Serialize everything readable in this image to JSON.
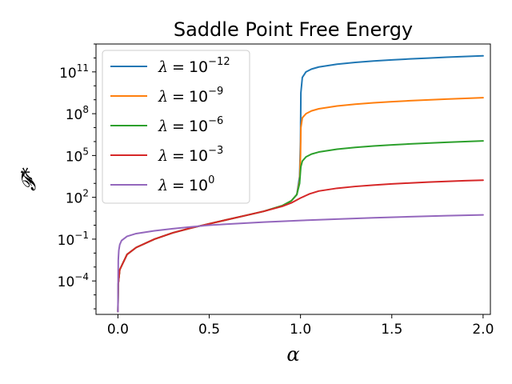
{
  "chart_data": {
    "type": "line",
    "title": "Saddle Point Free Energy",
    "xlabel": "α",
    "ylabel": "𝓕*",
    "xlim": [
      -0.12,
      2.04
    ],
    "ylim_log10": [
      -6.4,
      13.0
    ],
    "yscale": "log",
    "grid": false,
    "legend_placement": "top-left",
    "x_ticks": [
      {
        "value": 0.0,
        "label": "0.0"
      },
      {
        "value": 0.5,
        "label": "0.5"
      },
      {
        "value": 1.0,
        "label": "1.0"
      },
      {
        "value": 1.5,
        "label": "1.5"
      },
      {
        "value": 2.0,
        "label": "2.0"
      }
    ],
    "y_ticks": [
      {
        "exp": -4,
        "base": "10",
        "power": "−4"
      },
      {
        "exp": -1,
        "base": "10",
        "power": "−1"
      },
      {
        "exp": 2,
        "base": "10",
        "power": "2"
      },
      {
        "exp": 5,
        "base": "10",
        "power": "5"
      },
      {
        "exp": 8,
        "base": "10",
        "power": "8"
      },
      {
        "exp": 11,
        "base": "10",
        "power": "11"
      }
    ],
    "series": [
      {
        "name": "λ = 10^−12",
        "legend_symbol": "λ",
        "legend_eq": "=",
        "legend_base": "10",
        "legend_power": "−12",
        "color": "#1f77b4",
        "x": [
          0.0,
          0.002,
          0.01,
          0.05,
          0.1,
          0.2,
          0.3,
          0.4,
          0.5,
          0.6,
          0.7,
          0.8,
          0.9,
          0.95,
          0.98,
          0.995,
          1.0,
          1.002,
          1.01,
          1.03,
          1.06,
          1.1,
          1.2,
          1.3,
          1.4,
          1.5,
          1.6,
          1.7,
          1.8,
          1.9,
          2.0
        ],
        "y_log10": [
          -6.2,
          -4.2,
          -3.2,
          -2.1,
          -1.6,
          -1.0,
          -0.55,
          -0.2,
          0.1,
          0.4,
          0.7,
          1.0,
          1.4,
          1.75,
          2.2,
          3.5,
          6.0,
          9.5,
          10.6,
          11.0,
          11.2,
          11.35,
          11.55,
          11.68,
          11.78,
          11.86,
          11.93,
          11.99,
          12.05,
          12.1,
          12.15
        ]
      },
      {
        "name": "λ = 10^−9",
        "legend_symbol": "λ",
        "legend_eq": "=",
        "legend_base": "10",
        "legend_power": "−9",
        "color": "#ff7f0e",
        "x": [
          0.0,
          0.002,
          0.01,
          0.05,
          0.1,
          0.2,
          0.3,
          0.4,
          0.5,
          0.6,
          0.7,
          0.8,
          0.9,
          0.95,
          0.98,
          0.995,
          1.0,
          1.002,
          1.01,
          1.03,
          1.06,
          1.1,
          1.2,
          1.3,
          1.4,
          1.5,
          1.6,
          1.7,
          1.8,
          1.9,
          2.0
        ],
        "y_log10": [
          -6.2,
          -4.2,
          -3.2,
          -2.1,
          -1.6,
          -1.0,
          -0.55,
          -0.2,
          0.1,
          0.4,
          0.7,
          1.0,
          1.4,
          1.75,
          2.2,
          3.2,
          5.0,
          7.0,
          7.7,
          8.0,
          8.2,
          8.35,
          8.55,
          8.68,
          8.78,
          8.86,
          8.93,
          8.99,
          9.05,
          9.1,
          9.15
        ]
      },
      {
        "name": "λ = 10^−6",
        "legend_symbol": "λ",
        "legend_eq": "=",
        "legend_base": "10",
        "legend_power": "−6",
        "color": "#2ca02c",
        "x": [
          0.0,
          0.002,
          0.01,
          0.05,
          0.1,
          0.2,
          0.3,
          0.4,
          0.5,
          0.6,
          0.7,
          0.8,
          0.9,
          0.95,
          0.98,
          0.995,
          1.0,
          1.002,
          1.01,
          1.03,
          1.06,
          1.1,
          1.2,
          1.3,
          1.4,
          1.5,
          1.6,
          1.7,
          1.8,
          1.9,
          2.0
        ],
        "y_log10": [
          -6.2,
          -4.2,
          -3.2,
          -2.1,
          -1.6,
          -1.0,
          -0.55,
          -0.2,
          0.1,
          0.4,
          0.7,
          1.0,
          1.4,
          1.75,
          2.2,
          3.0,
          3.9,
          4.2,
          4.6,
          4.9,
          5.1,
          5.25,
          5.45,
          5.58,
          5.68,
          5.76,
          5.83,
          5.89,
          5.95,
          6.0,
          6.05
        ]
      },
      {
        "name": "λ = 10^−3",
        "legend_symbol": "λ",
        "legend_eq": "=",
        "legend_base": "10",
        "legend_power": "−3",
        "color": "#d62728",
        "x": [
          0.0,
          0.002,
          0.01,
          0.05,
          0.1,
          0.2,
          0.3,
          0.4,
          0.5,
          0.6,
          0.7,
          0.8,
          0.9,
          0.95,
          1.0,
          1.05,
          1.1,
          1.2,
          1.3,
          1.4,
          1.5,
          1.6,
          1.7,
          1.8,
          1.9,
          2.0
        ],
        "y_log10": [
          -6.2,
          -4.2,
          -3.2,
          -2.1,
          -1.6,
          -1.0,
          -0.55,
          -0.2,
          0.1,
          0.4,
          0.7,
          1.0,
          1.35,
          1.6,
          1.95,
          2.25,
          2.45,
          2.65,
          2.78,
          2.88,
          2.96,
          3.03,
          3.09,
          3.14,
          3.19,
          3.23
        ]
      },
      {
        "name": "λ = 10^0",
        "legend_symbol": "λ",
        "legend_eq": "=",
        "legend_base": "10",
        "legend_power": "0",
        "color": "#9467bd",
        "x": [
          0.0,
          0.002,
          0.005,
          0.01,
          0.02,
          0.05,
          0.1,
          0.2,
          0.3,
          0.4,
          0.5,
          0.6,
          0.7,
          0.8,
          0.9,
          1.0,
          1.2,
          1.4,
          1.6,
          1.8,
          2.0
        ],
        "y_log10": [
          -6.2,
          -2.5,
          -1.8,
          -1.4,
          -1.1,
          -0.8,
          -0.6,
          -0.4,
          -0.25,
          -0.12,
          0.0,
          0.08,
          0.15,
          0.22,
          0.28,
          0.34,
          0.44,
          0.53,
          0.61,
          0.68,
          0.74
        ]
      }
    ]
  }
}
